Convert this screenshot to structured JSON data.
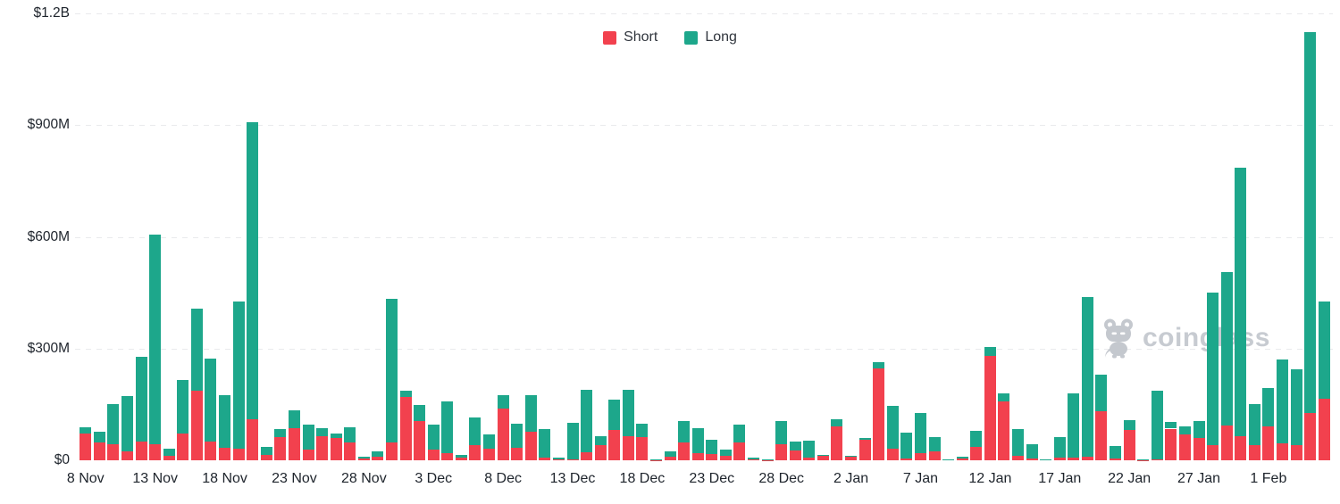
{
  "watermark": {
    "text": "coinglass"
  },
  "chart_data": {
    "type": "bar",
    "stacked": true,
    "title": "",
    "unit": "$M",
    "ylim": [
      0,
      1200
    ],
    "grid": "dashed-horizontal",
    "legend_position": "top-center",
    "y_axis": {
      "ticks": [
        {
          "label": "$0",
          "value": 0
        },
        {
          "label": "$300M",
          "value": 300
        },
        {
          "label": "$600M",
          "value": 600
        },
        {
          "label": "$900M",
          "value": 900
        },
        {
          "label": "$1.2B",
          "value": 1200
        }
      ]
    },
    "x_axis": {
      "tick_indices": [
        0,
        5,
        10,
        15,
        20,
        25,
        30,
        35,
        40,
        45,
        50,
        55,
        60,
        65,
        70,
        75,
        80,
        85
      ],
      "tick_labels": [
        "8 Nov",
        "13 Nov",
        "18 Nov",
        "23 Nov",
        "28 Nov",
        "3 Dec",
        "8 Dec",
        "13 Dec",
        "18 Dec",
        "23 Dec",
        "28 Dec",
        "2 Jan",
        "7 Jan",
        "12 Jan",
        "17 Jan",
        "22 Jan",
        "27 Jan",
        "1 Feb"
      ]
    },
    "categories": [
      "8 Nov",
      "9 Nov",
      "10 Nov",
      "11 Nov",
      "12 Nov",
      "13 Nov",
      "14 Nov",
      "15 Nov",
      "16 Nov",
      "17 Nov",
      "18 Nov",
      "19 Nov",
      "20 Nov",
      "21 Nov",
      "22 Nov",
      "23 Nov",
      "24 Nov",
      "25 Nov",
      "26 Nov",
      "27 Nov",
      "28 Nov",
      "29 Nov",
      "30 Nov",
      "1 Dec",
      "2 Dec",
      "3 Dec",
      "4 Dec",
      "5 Dec",
      "6 Dec",
      "7 Dec",
      "8 Dec",
      "9 Dec",
      "10 Dec",
      "11 Dec",
      "12 Dec",
      "13 Dec",
      "14 Dec",
      "15 Dec",
      "16 Dec",
      "17 Dec",
      "18 Dec",
      "19 Dec",
      "20 Dec",
      "21 Dec",
      "22 Dec",
      "23 Dec",
      "24 Dec",
      "25 Dec",
      "26 Dec",
      "27 Dec",
      "28 Dec",
      "29 Dec",
      "30 Dec",
      "31 Dec",
      "1 Jan",
      "2 Jan",
      "3 Jan",
      "4 Jan",
      "5 Jan",
      "6 Jan",
      "7 Jan",
      "8 Jan",
      "9 Jan",
      "10 Jan",
      "11 Jan",
      "12 Jan",
      "13 Jan",
      "14 Jan",
      "15 Jan",
      "16 Jan",
      "17 Jan",
      "18 Jan",
      "19 Jan",
      "20 Jan",
      "21 Jan",
      "22 Jan",
      "23 Jan",
      "24 Jan",
      "25 Jan",
      "26 Jan",
      "27 Jan",
      "28 Jan",
      "29 Jan",
      "30 Jan",
      "31 Jan",
      "1 Feb",
      "2 Feb",
      "3 Feb",
      "4 Feb",
      "5 Feb"
    ],
    "series": [
      {
        "name": "Short",
        "color": "#f2414e",
        "values": [
          72,
          47,
          42,
          24,
          51,
          44,
          12,
          73,
          186,
          51,
          33,
          31,
          109,
          15,
          63,
          87,
          29,
          64,
          61,
          47,
          5,
          10,
          49,
          170,
          105,
          29,
          18,
          6,
          40,
          32,
          139,
          33,
          77,
          8,
          2,
          3,
          22,
          40,
          81,
          64,
          62,
          1,
          10,
          47,
          20,
          16,
          12,
          47,
          3,
          1,
          43,
          27,
          6,
          11,
          91,
          9,
          55,
          247,
          31,
          5,
          19,
          23,
          2,
          4,
          36,
          280,
          157,
          12,
          4,
          2,
          6,
          8,
          10,
          131,
          5,
          82,
          1,
          3,
          85,
          70,
          60,
          40,
          93,
          64,
          40,
          90,
          45,
          41,
          128,
          166
        ]
      },
      {
        "name": "Long",
        "color": "#1da78b",
        "values": [
          17,
          30,
          108,
          148,
          226,
          561,
          19,
          143,
          222,
          223,
          143,
          395,
          799,
          21,
          20,
          46,
          68,
          22,
          12,
          42,
          4,
          15,
          385,
          18,
          44,
          68,
          139,
          9,
          75,
          37,
          35,
          66,
          97,
          77,
          4,
          98,
          168,
          25,
          83,
          125,
          36,
          1,
          13,
          58,
          67,
          39,
          17,
          48,
          3,
          1,
          63,
          24,
          46,
          4,
          20,
          4,
          5,
          16,
          115,
          69,
          108,
          40,
          1,
          6,
          42,
          25,
          22,
          71,
          39,
          1,
          57,
          172,
          429,
          99,
          34,
          25,
          1,
          185,
          18,
          20,
          45,
          410,
          413,
          721,
          110,
          105,
          226,
          203,
          1022,
          260
        ]
      }
    ]
  }
}
